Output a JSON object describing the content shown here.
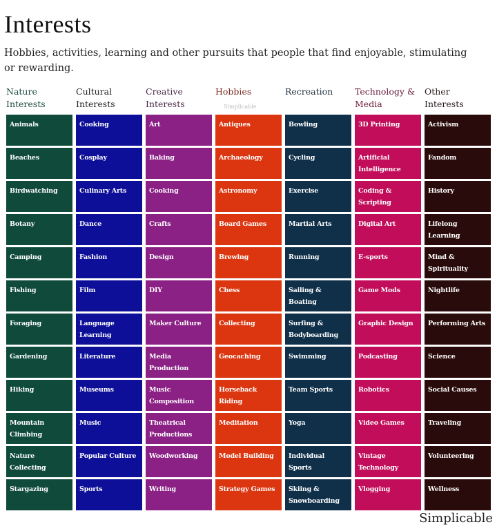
{
  "title": "Interests",
  "subtitle": "Hobbies, activities, learning and other pursuits that people that find enjoyable, stimulating or rewarding.",
  "watermark": "Simplicable",
  "brand": "Simplicable",
  "columns": [
    {
      "header": "Nature Interests",
      "color": "#0f4a3b",
      "header_color": "#1d4a40",
      "items": [
        "Animals",
        "Beaches",
        "Birdwatching",
        "Botany",
        "Camping",
        "Fishing",
        "Foraging",
        "Gardening",
        "Hiking",
        "Mountain Climbing",
        "Nature Collecting",
        "Stargazing"
      ]
    },
    {
      "header": "Cultural Interests",
      "color": "#0d0f98",
      "header_color": "#222",
      "items": [
        "Cooking",
        "Cosplay",
        "Culinary Arts",
        "Dance",
        "Fashion",
        "Film",
        "Language Learning",
        "Literature",
        "Museums",
        "Music",
        "Popular Culture",
        "Sports"
      ]
    },
    {
      "header": "Creative Interests",
      "color": "#8b2185",
      "header_color": "#4a2a48",
      "items": [
        "Art",
        "Baking",
        "Cooking",
        "Crafts",
        "Design",
        "DIY",
        "Maker Culture",
        "Media Production",
        "Music Composition",
        "Theatrical Productions",
        "Woodworking",
        "Writing"
      ]
    },
    {
      "header": "Hobbies",
      "color": "#dc3610",
      "header_color": "#7a2a20",
      "items": [
        "Antiques",
        "Archaeology",
        "Astronomy",
        "Board Games",
        "Brewing",
        "Chess",
        "Collecting",
        "Geocaching",
        "Horseback Riding",
        "Meditation",
        "Model Building",
        "Strategy Games"
      ]
    },
    {
      "header": "Recreation",
      "color": "#10304a",
      "header_color": "#1e2e3c",
      "items": [
        "Bowling",
        "Cycling",
        "Exercise",
        "Martial Arts",
        "Running",
        "Sailing & Boating",
        "Surfing & Bodyboarding",
        "Swimming",
        "Team Sports",
        "Yoga",
        "Individual Sports",
        "Skiing & Snowboarding"
      ]
    },
    {
      "header": "Technology & Media",
      "color": "#c20e5a",
      "header_color": "#6a1a3a",
      "items": [
        "3D Printing",
        "Artificial Intelligence",
        "Coding & Scripting",
        "Digital Art",
        "E-sports",
        "Game Mods",
        "Graphic Design",
        "Podcasting",
        "Robotics",
        "Video Games",
        "Vintage Technology",
        "Vlogging"
      ]
    },
    {
      "header": "Other Interests",
      "color": "#2a0b0b",
      "header_color": "#2a1a1a",
      "items": [
        "Activism",
        "Fandom",
        "History",
        "Lifelong Learning",
        "Mind & Spirituality",
        "Nightlife",
        "Performing Arts",
        "Science",
        "Social Causes",
        "Traveling",
        "Volunteering",
        "Wellness"
      ]
    }
  ]
}
